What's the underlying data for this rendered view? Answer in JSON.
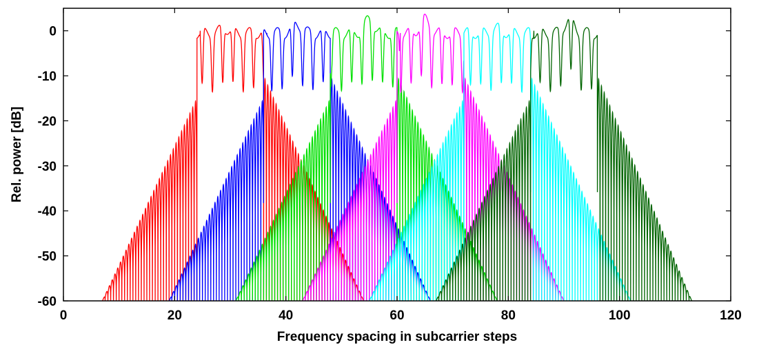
{
  "chart_data": {
    "type": "line",
    "title": "",
    "xlabel": "Frequency spacing in subcarrier steps",
    "ylabel": "Rel. power [dB]",
    "xlim": [
      0,
      120
    ],
    "ylim": [
      -60,
      5
    ],
    "xticks": [
      "0",
      "20",
      "40",
      "60",
      "80",
      "100",
      "120"
    ],
    "yticks": [
      "0",
      "-10",
      "-20",
      "-30",
      "-40",
      "-50",
      "-60"
    ],
    "grid": false,
    "legend": "none",
    "series": [
      {
        "color": "#ff0000",
        "passband": [
          24,
          36
        ],
        "edge": [
          7,
          54
        ],
        "peak_dB": 2
      },
      {
        "color": "#0000ff",
        "passband": [
          36,
          48
        ],
        "edge": [
          19,
          66
        ],
        "peak_dB": 3
      },
      {
        "color": "#00e000",
        "passband": [
          48,
          60
        ],
        "edge": [
          31,
          78
        ],
        "peak_dB": 4
      },
      {
        "color": "#ff00ff",
        "passband": [
          60,
          72
        ],
        "edge": [
          43,
          90
        ],
        "peak_dB": 4
      },
      {
        "color": "#00ffff",
        "passband": [
          72,
          84
        ],
        "edge": [
          55,
          102
        ],
        "peak_dB": 2
      },
      {
        "color": "#006400",
        "passband": [
          84,
          96
        ],
        "edge": [
          67,
          113
        ],
        "peak_dB": 4
      }
    ]
  }
}
